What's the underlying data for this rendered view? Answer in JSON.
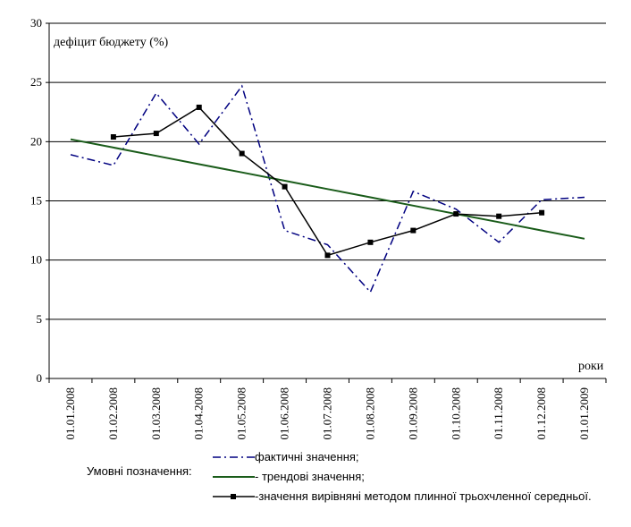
{
  "chart_data": {
    "type": "line",
    "ylabel": "дефіцит бюджету (%)",
    "xlabel": "роки",
    "ylim": [
      0,
      30
    ],
    "yticks": [
      "0",
      "5",
      "10",
      "15",
      "20",
      "25",
      "30"
    ],
    "categories": [
      "01.01.2008",
      "01.02.2008",
      "01.03.2008",
      "01.04.2008",
      "01.05.2008",
      "01.06.2008",
      "01.07.2008",
      "01.08.2008",
      "01.09.2008",
      "01.10.2008",
      "01.11.2008",
      "01.12.2008",
      "01.01.2009"
    ],
    "grid": true,
    "series": [
      {
        "name": "фактичні значення;",
        "style": "dash-dot",
        "color": "#000080",
        "values": [
          18.9,
          18.0,
          24.1,
          19.8,
          24.7,
          12.5,
          11.3,
          7.3,
          15.8,
          14.3,
          11.5,
          15.1,
          15.3
        ]
      },
      {
        "name": "трендові значення;",
        "style": "solid",
        "color": "#1a5c1a",
        "values": [
          20.2,
          19.5,
          18.8,
          18.1,
          17.4,
          16.7,
          16.0,
          15.3,
          14.6,
          13.9,
          13.2,
          12.5,
          11.8
        ]
      },
      {
        "name": "значення вирівняні методом плинної трьохчленної середньої.",
        "style": "solid-square",
        "color": "#000000",
        "values": [
          null,
          20.4,
          20.7,
          22.9,
          19.0,
          16.2,
          10.4,
          11.5,
          12.5,
          13.9,
          13.7,
          14.0,
          null
        ]
      }
    ],
    "legend": {
      "title": "Умовні позначення:",
      "placement": "bottom",
      "entries": [
        {
          "prefix": "",
          "text": "фактичні значення;"
        },
        {
          "prefix": "-  ",
          "text": "трендові значення;"
        },
        {
          "prefix": "-",
          "text": "значення вирівняні методом плинної трьохчленної середньої."
        }
      ]
    }
  }
}
